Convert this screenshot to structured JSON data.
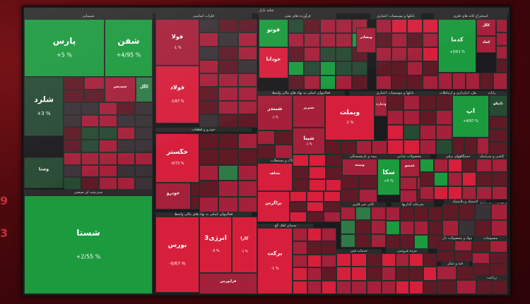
{
  "chart_data": {
    "type": "heatmap",
    "colors": {
      "strong_green": "#1c9a3e",
      "green": "#2f7a47",
      "dark_green": "#274a33",
      "strong_red": "#d71f3c",
      "red": "#a5203a",
      "dark_red": "#5f1a26",
      "neutral": "#3a3236"
    },
    "side_glyphs": [
      "9",
      "3"
    ],
    "sectors": [
      {
        "name": "شیمیایی",
        "tiles": [
          {
            "symbol": "پارس",
            "change": "+5 %",
            "color": "strong_green"
          },
          {
            "symbol": "شفن",
            "change": "+4/95 %",
            "color": "strong_green"
          },
          {
            "symbol": "شلرد",
            "change": "+3 %",
            "color": "dark_green"
          },
          {
            "symbol": "شپدیس",
            "change": "",
            "color": "red"
          },
          {
            "symbol": "کگل",
            "change": "",
            "color": "green"
          }
        ]
      },
      {
        "name": "فلزات اساسی",
        "tiles": [
          {
            "symbol": "فولا",
            "change": "-1 %",
            "color": "red"
          },
          {
            "symbol": "فولاد",
            "change": "-1/67 %",
            "color": "strong_red"
          },
          {
            "symbol": "فملی",
            "change": "",
            "color": "red"
          },
          {
            "symbol": "فسپا",
            "change": "",
            "color": "red"
          }
        ]
      },
      {
        "name": "خودرو و قطعات",
        "tiles": [
          {
            "symbol": "خگستر",
            "change": "-0/72 %",
            "color": "strong_red"
          },
          {
            "symbol": "خودرو",
            "change": "",
            "color": "red"
          },
          {
            "symbol": "خساپا",
            "change": "",
            "color": "red"
          }
        ]
      },
      {
        "name": "فعالیتهای کمکی به نهاد های مالی واسط",
        "tiles": [
          {
            "symbol": "بورس",
            "change": "-0/67 %",
            "color": "strong_red"
          },
          {
            "symbol": "انرژی3",
            "change": "-3 %",
            "color": "strong_red"
          },
          {
            "symbol": "کارا",
            "change": "-1 %",
            "color": "strong_red"
          },
          {
            "symbol": "فرابورس",
            "change": "",
            "color": "red"
          }
        ]
      },
      {
        "name": "عرضه برق، گاز، بخار و آب گرم",
        "tiles": [
          {
            "symbol": "بزاگرس",
            "change": "",
            "color": "strong_red"
          },
          {
            "symbol": "برکت",
            "change": "-1 %",
            "color": "strong_red"
          }
        ]
      },
      {
        "name": "چندرشته ای صنعتی",
        "tiles": [
          {
            "symbol": "شستا",
            "change": "+2/55 %",
            "color": "strong_green"
          },
          {
            "symbol": "وصنا",
            "change": "",
            "color": "dark_green"
          }
        ]
      },
      {
        "name": "استخراج کانه های فلزی",
        "tiles": [
          {
            "symbol": "کدما",
            "change": "+3/61 %",
            "color": "strong_green"
          },
          {
            "symbol": "کگل",
            "change": "",
            "color": "red"
          },
          {
            "symbol": "کچاد",
            "change": "",
            "color": "red"
          }
        ]
      },
      {
        "name": "رایانه",
        "tiles": [
          {
            "symbol": "آپ",
            "change": "+4/97 %",
            "color": "strong_green"
          },
          {
            "symbol": "تاپیکو",
            "change": "",
            "color": "dark_green"
          }
        ]
      },
      {
        "name": "بانکها و موسسات اعتباری",
        "tiles": [
          {
            "symbol": "وبملت",
            "change": "-1 %",
            "color": "strong_red"
          },
          {
            "symbol": "وتجارت",
            "change": "",
            "color": "red"
          },
          {
            "symbol": "وبصادر",
            "change": "",
            "color": "red"
          }
        ]
      },
      {
        "name": "فراورده های نفتی",
        "tiles": [
          {
            "symbol": "شبندر",
            "change": "-1 %",
            "color": "red"
          },
          {
            "symbol": "شپنا",
            "change": "-1 %",
            "color": "red"
          },
          {
            "symbol": "شبریز",
            "change": "",
            "color": "red"
          }
        ]
      },
      {
        "name": "شرکتهای چند رشته ای صنعتی",
        "tiles": [
          {
            "symbol": "فوتو",
            "change": "",
            "color": "strong_green"
          },
          {
            "symbol": "خودانا",
            "change": "",
            "color": "strong_red"
          }
        ]
      },
      {
        "name": "محصولات غذایی",
        "tiles": [
          {
            "symbol": "سکا",
            "change": "+5 %",
            "color": "strong_green"
          },
          {
            "symbol": "غمینو",
            "change": "",
            "color": "red"
          }
        ]
      },
      {
        "name": "انبوه سازی، املاک و مستغلات",
        "tiles": [
          {
            "symbol": "ثشاهد",
            "change": "",
            "color": "strong_red"
          }
        ]
      },
      {
        "name": "بیمه و بازنشستگی",
        "tiles": [
          {
            "symbol": "وبیمه",
            "change": "",
            "color": "red"
          }
        ]
      }
    ]
  },
  "headers": {
    "top_center": "شلنه بازار",
    "chem": "شیمیایی",
    "metal": "فلزات اساسی",
    "oil": "فرآورده های نفتی",
    "bank": "بانکها و موسسات اعتباری",
    "auto": "خودرو و قطعات",
    "mining": "استخراج کانه های فلزی",
    "it": "رایانه",
    "multi": "چندرشته ای صنعتی",
    "aux": "فعالیتهای کمکی به نهاد های مالی واسط",
    "insurance": "بیمه و بازنشستگی",
    "realestate": "انبوه سازی، املاک و مستغلات",
    "food": "محصولات غذایی",
    "transport": "حمل و نقل، انبارداری و ارتباطات",
    "ceramic": "کاشی و سرامیک",
    "pharma": "مواد و محصولات دارویی",
    "investment": "سرمایه گذاریها",
    "cement": "سیمان آهک گچ",
    "telecom": "اطلاعات و ارتباطات",
    "oil_extraction": "استخراج نفت و گاز",
    "rubber": "لاستیک و پلاستیک",
    "electric": "دستگاههای برقی",
    "agriculture": "زراعت",
    "retail": "خرده فروشی",
    "nonmetal": "کانی غیر فلزی",
    "machinery": "ماشین آلات",
    "sugar": "قند و شکر",
    "textiles": "منسوجات",
    "services": "خدمات فنی"
  }
}
